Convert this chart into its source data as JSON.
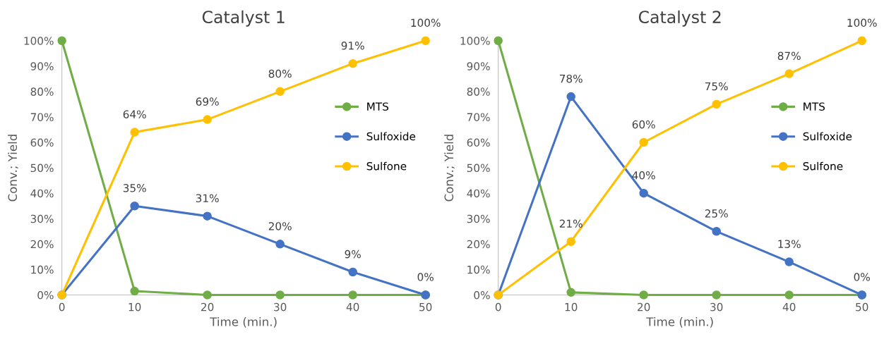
{
  "chart_data": [
    {
      "type": "line",
      "title": "Catalyst 1",
      "xlabel": "Time (min.)",
      "ylabel": "Conv.; Yield",
      "x": [
        0,
        10,
        20,
        30,
        40,
        50
      ],
      "xlim": [
        0,
        50
      ],
      "xticks": [
        0,
        10,
        20,
        30,
        40,
        50
      ],
      "ylim": [
        0,
        100
      ],
      "yticks": [
        {
          "value": 0,
          "label": "0%"
        },
        {
          "value": 10,
          "label": "10%"
        },
        {
          "value": 20,
          "label": "20%"
        },
        {
          "value": 30,
          "label": "30%"
        },
        {
          "value": 40,
          "label": "40%"
        },
        {
          "value": 50,
          "label": "50%"
        },
        {
          "value": 60,
          "label": "60%"
        },
        {
          "value": 70,
          "label": "70%"
        },
        {
          "value": 80,
          "label": "80%"
        },
        {
          "value": 90,
          "label": "90%"
        },
        {
          "value": 100,
          "label": "100%"
        }
      ],
      "marker": "circle",
      "legend": "right",
      "grid": false,
      "series": [
        {
          "name": "MTS",
          "color": "#70ad47",
          "values": [
            100,
            1.5,
            0,
            0,
            0,
            0
          ]
        },
        {
          "name": "Sulfoxide",
          "color": "#4472c4",
          "values": [
            0,
            35,
            31,
            20,
            9,
            0
          ],
          "value_labels": [
            null,
            "35%",
            "31%",
            "20%",
            "9%",
            "0%"
          ]
        },
        {
          "name": "Sulfone",
          "color": "#ffc000",
          "values": [
            0,
            64,
            69,
            80,
            91,
            100
          ],
          "value_labels": [
            null,
            "64%",
            "69%",
            "80%",
            "91%",
            "100%"
          ]
        }
      ]
    },
    {
      "type": "line",
      "title": "Catalyst 2",
      "xlabel": "Time (min.)",
      "ylabel": "Conv.; Yield",
      "x": [
        0,
        10,
        20,
        30,
        40,
        50
      ],
      "xlim": [
        0,
        50
      ],
      "xticks": [
        0,
        10,
        20,
        30,
        40,
        50
      ],
      "ylim": [
        0,
        100
      ],
      "yticks": [
        {
          "value": 0,
          "label": "0%"
        },
        {
          "value": 10,
          "label": "10%"
        },
        {
          "value": 20,
          "label": "20%"
        },
        {
          "value": 30,
          "label": "30%"
        },
        {
          "value": 40,
          "label": "40%"
        },
        {
          "value": 50,
          "label": "50%"
        },
        {
          "value": 60,
          "label": "60%"
        },
        {
          "value": 70,
          "label": "70%"
        },
        {
          "value": 80,
          "label": "80%"
        },
        {
          "value": 90,
          "label": "90%"
        },
        {
          "value": 100,
          "label": "100%"
        }
      ],
      "marker": "circle",
      "legend": "right",
      "grid": false,
      "series": [
        {
          "name": "MTS",
          "color": "#70ad47",
          "values": [
            100,
            1,
            0,
            0,
            0,
            0
          ]
        },
        {
          "name": "Sulfoxide",
          "color": "#4472c4",
          "values": [
            0,
            78,
            40,
            25,
            13,
            0
          ],
          "value_labels": [
            null,
            "78%",
            "40%",
            "25%",
            "13%",
            "0%"
          ]
        },
        {
          "name": "Sulfone",
          "color": "#ffc000",
          "values": [
            0,
            21,
            60,
            75,
            87,
            100
          ],
          "value_labels": [
            null,
            "21%",
            "60%",
            "75%",
            "87%",
            "100%"
          ]
        }
      ]
    }
  ]
}
